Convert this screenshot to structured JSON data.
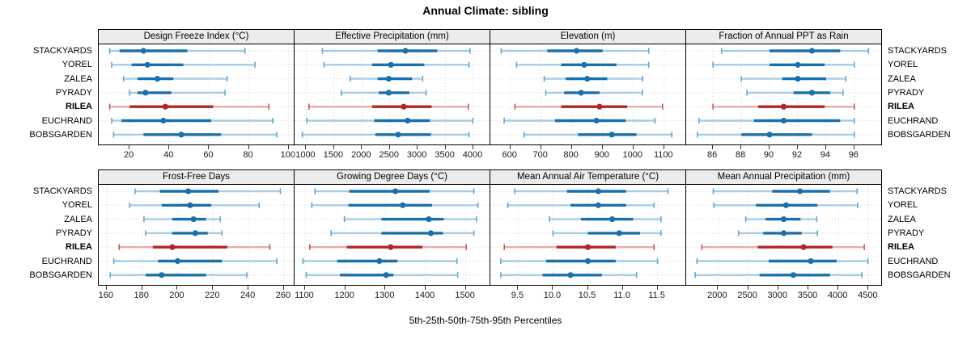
{
  "title": "Annual Climate: sibling",
  "axis_label": "5th-25th-50th-75th-95th Percentiles",
  "sites": [
    "STACKYARDS",
    "YOREL",
    "ZALEA",
    "PYRADY",
    "RILEA",
    "EUCHRAND",
    "BOBSGARDEN"
  ],
  "highlight_site": "RILEA",
  "percentile_labels": [
    "5th",
    "25th",
    "50th",
    "75th",
    "95th"
  ],
  "colors": {
    "blue": "#1a70ad",
    "blue_light": "#a7cde4",
    "blue_cap": "#64a7d4",
    "red": "#b12724",
    "red_light": "#e6aea8",
    "red_cap": "#c65a53",
    "strip_bg": "#ececec",
    "border": "#000000",
    "grid_h": "#d2d2d2",
    "grid_v": "#cbd8e2",
    "tick": "#333333"
  },
  "chart_data": [
    {
      "type": "percentile-interval",
      "title": "Design Freeze Index (°C)",
      "domain": [
        4.5,
        102.5
      ],
      "ticks": [
        20,
        40,
        60,
        80,
        100
      ],
      "tick_labels": [
        "20",
        "40",
        "60",
        "80",
        "100"
      ],
      "values": [
        [
          10,
          15,
          27,
          49,
          78
        ],
        [
          11,
          21,
          29,
          47,
          83
        ],
        [
          17,
          24,
          34,
          42,
          69
        ],
        [
          20,
          24,
          28,
          41,
          68
        ],
        [
          10,
          20,
          38,
          62,
          90
        ],
        [
          11,
          16,
          37,
          61,
          92
        ],
        [
          12,
          27,
          46,
          66,
          94
        ]
      ]
    },
    {
      "type": "percentile-interval",
      "title": "Effective Precipitation (mm)",
      "domain": [
        790,
        4290
      ],
      "ticks": [
        1000,
        1500,
        2000,
        2500,
        3000,
        3500,
        4000
      ],
      "tick_labels": [
        "1000",
        "1500",
        "2000",
        "2500",
        "3000",
        "3500",
        "4000"
      ],
      "values": [
        [
          1290,
          2280,
          2780,
          3350,
          3940
        ],
        [
          1320,
          2180,
          2520,
          3120,
          3920
        ],
        [
          1790,
          2280,
          2480,
          2900,
          3090
        ],
        [
          1630,
          2300,
          2480,
          2850,
          3150
        ],
        [
          1050,
          2180,
          2750,
          3250,
          3910
        ],
        [
          1010,
          2220,
          2820,
          3220,
          3990
        ],
        [
          930,
          2240,
          2650,
          3240,
          3920
        ]
      ]
    },
    {
      "type": "percentile-interval",
      "title": "Elevation (m)",
      "domain": [
        535,
        1169
      ],
      "ticks": [
        600,
        700,
        800,
        900,
        1000,
        1100
      ],
      "tick_labels": [
        "600",
        "700",
        "800",
        "900",
        "1000",
        "1100"
      ],
      "values": [
        [
          570,
          720,
          815,
          900,
          1050
        ],
        [
          620,
          765,
          840,
          945,
          1050
        ],
        [
          710,
          780,
          850,
          915,
          1030
        ],
        [
          715,
          775,
          830,
          890,
          1030
        ],
        [
          615,
          765,
          890,
          980,
          1095
        ],
        [
          580,
          745,
          880,
          975,
          1070
        ],
        [
          645,
          820,
          930,
          1010,
          1125
        ]
      ]
    },
    {
      "type": "percentile-interval",
      "title": "Fraction of Annual PPT as Rain",
      "domain": [
        84.1,
        97.9
      ],
      "ticks": [
        86,
        88,
        90,
        92,
        94,
        96
      ],
      "tick_labels": [
        "86",
        "88",
        "90",
        "92",
        "94",
        "96"
      ],
      "values": [
        [
          86.6,
          90,
          93,
          95,
          97
        ],
        [
          86,
          90,
          92,
          93.9,
          96
        ],
        [
          88,
          90.9,
          92,
          94,
          95.4
        ],
        [
          88.4,
          91.7,
          93,
          94.3,
          95.2
        ],
        [
          86,
          89.2,
          91,
          93.9,
          96
        ],
        [
          85,
          88.9,
          91,
          95,
          96
        ],
        [
          84.9,
          88,
          90,
          93,
          96
        ]
      ]
    },
    {
      "type": "percentile-interval",
      "title": "Frost-Free Days",
      "domain": [
        155.5,
        265.5
      ],
      "ticks": [
        160,
        180,
        200,
        220,
        240,
        260
      ],
      "tick_labels": [
        "160",
        "180",
        "200",
        "220",
        "240",
        "260"
      ],
      "values": [
        [
          176,
          190,
          206,
          223,
          258
        ],
        [
          173,
          191,
          207,
          219,
          246
        ],
        [
          181,
          197,
          209,
          216,
          224
        ],
        [
          182,
          197,
          210,
          217,
          225
        ],
        [
          167,
          186,
          197,
          228,
          252
        ],
        [
          164,
          189,
          200,
          225,
          256
        ],
        [
          162,
          182,
          191,
          216,
          239
        ]
      ]
    },
    {
      "type": "percentile-interval",
      "title": "Growing Degree Days (°C)",
      "domain": [
        1074,
        1559
      ],
      "ticks": [
        1100,
        1200,
        1300,
        1400,
        1500
      ],
      "tick_labels": [
        "1100",
        "1200",
        "1300",
        "1400",
        "1500"
      ],
      "values": [
        [
          1125,
          1210,
          1325,
          1410,
          1520
        ],
        [
          1117,
          1208,
          1343,
          1416,
          1530
        ],
        [
          1198,
          1290,
          1408,
          1445,
          1527
        ],
        [
          1165,
          1290,
          1413,
          1443,
          1520
        ],
        [
          1112,
          1204,
          1313,
          1392,
          1501
        ],
        [
          1095,
          1180,
          1285,
          1330,
          1478
        ],
        [
          1103,
          1187,
          1302,
          1320,
          1480
        ]
      ]
    },
    {
      "type": "percentile-interval",
      "title": "Mean Annual Air Temperature (°C)",
      "domain": [
        9.1,
        11.9
      ],
      "ticks": [
        9.5,
        10.0,
        10.5,
        11.0,
        11.5
      ],
      "tick_labels": [
        "9.5",
        "10.0",
        "10.5",
        "11.0",
        "11.5"
      ],
      "values": [
        [
          9.45,
          10.2,
          10.65,
          11.05,
          11.65
        ],
        [
          9.35,
          10.25,
          10.65,
          11.05,
          11.45
        ],
        [
          9.95,
          10.4,
          10.85,
          11.15,
          11.55
        ],
        [
          10.0,
          10.5,
          10.95,
          11.25,
          11.55
        ],
        [
          9.3,
          10.05,
          10.5,
          10.9,
          11.45
        ],
        [
          9.25,
          9.9,
          10.5,
          10.9,
          11.5
        ],
        [
          9.25,
          9.85,
          10.25,
          10.7,
          11.2
        ]
      ]
    },
    {
      "type": "percentile-interval",
      "title": "Mean Annual Precipitation (mm)",
      "domain": [
        1470,
        4710
      ],
      "ticks": [
        2000,
        2500,
        3000,
        3500,
        4000,
        4500
      ],
      "tick_labels": [
        "2000",
        "2500",
        "3000",
        "3500",
        "4000",
        "4500"
      ],
      "values": [
        [
          1920,
          2900,
          3360,
          3860,
          4310
        ],
        [
          1930,
          2630,
          3130,
          3650,
          4320
        ],
        [
          2460,
          2790,
          3090,
          3370,
          3640
        ],
        [
          2340,
          2750,
          3090,
          3390,
          3650
        ],
        [
          1730,
          2660,
          3420,
          3900,
          4430
        ],
        [
          1650,
          2840,
          3540,
          3970,
          4490
        ],
        [
          1620,
          2690,
          3250,
          3860,
          4390
        ]
      ]
    }
  ]
}
